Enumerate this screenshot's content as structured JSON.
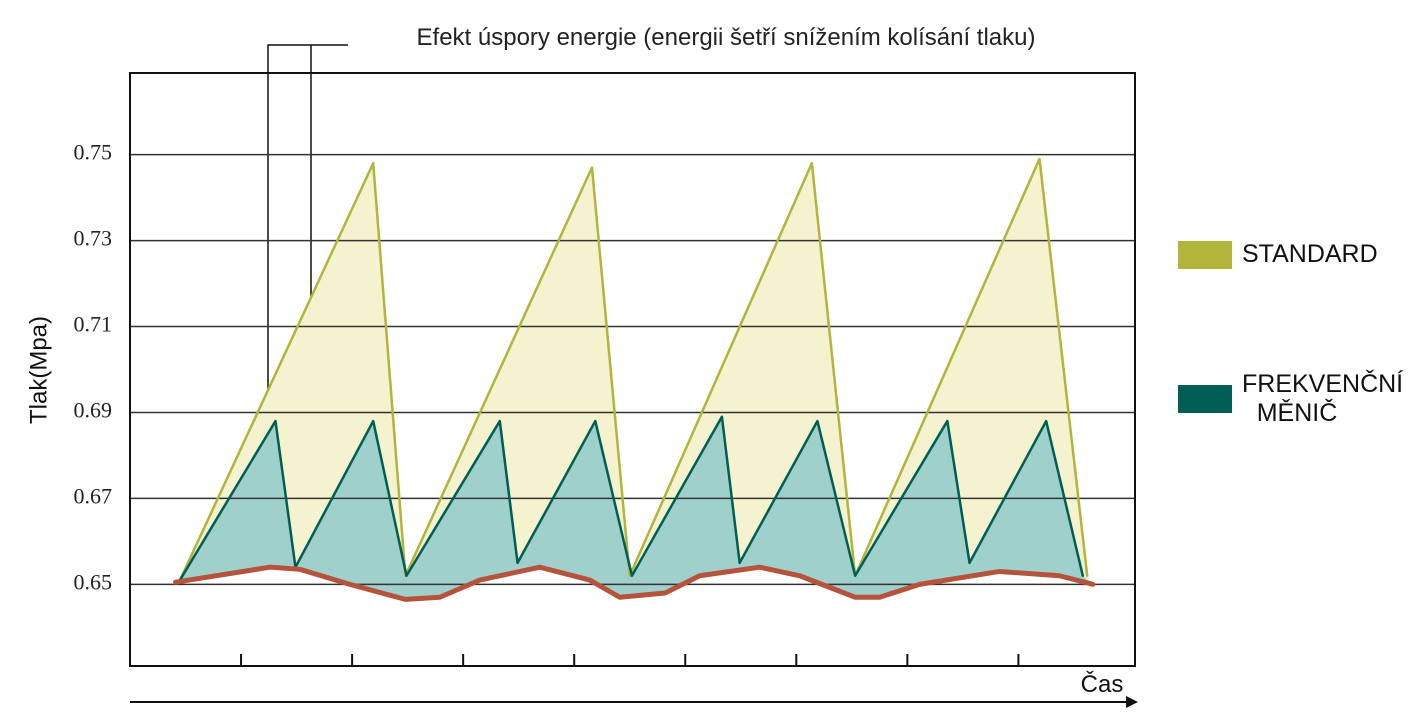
{
  "chart_data": {
    "type": "area",
    "annotation": "Efekt úspory energie (energii šetří snížením kolísání tlaku)",
    "y_label": "Tlak(Mpa)",
    "x_label": "Čas",
    "xlim": [
      0,
      9.05
    ],
    "xticks": [
      1,
      2,
      3,
      4,
      5,
      6,
      7,
      8
    ],
    "ylim": [
      0.631,
      0.769
    ],
    "yticks": [
      0.65,
      0.67,
      0.69,
      0.71,
      0.73,
      0.75
    ],
    "grid": true,
    "legend": "right",
    "series": [
      {
        "name": "STANDARD",
        "color": "#b2b43c",
        "fill": "#f4f2cf",
        "x": [
          0.45,
          2.19,
          2.48,
          4.16,
          4.5,
          6.14,
          6.53,
          8.19,
          8.62
        ],
        "values": [
          0.651,
          0.748,
          0.652,
          0.747,
          0.652,
          0.748,
          0.652,
          0.749,
          0.652
        ]
      },
      {
        "name": "FREKVENČNÍ MĚNIČ",
        "color": "#005e55",
        "fill": "#9fd0cb",
        "x": [
          0.45,
          1.31,
          1.49,
          2.19,
          2.49,
          3.33,
          3.49,
          4.19,
          4.52,
          5.33,
          5.49,
          6.19,
          6.53,
          7.36,
          7.56,
          8.25,
          8.58
        ],
        "values": [
          0.651,
          0.688,
          0.654,
          0.688,
          0.652,
          0.688,
          0.655,
          0.688,
          0.652,
          0.689,
          0.655,
          0.688,
          0.652,
          0.688,
          0.655,
          0.688,
          0.652
        ]
      },
      {
        "color": "#b5533c",
        "x": [
          0.41,
          1.26,
          1.53,
          1.98,
          2.48,
          2.79,
          3.15,
          3.69,
          4.14,
          4.41,
          4.82,
          5.13,
          5.67,
          6.03,
          6.53,
          6.75,
          7.11,
          7.83,
          8.37,
          8.67
        ],
        "values": [
          0.6505,
          0.654,
          0.6535,
          0.65,
          0.6465,
          0.647,
          0.651,
          0.654,
          0.651,
          0.647,
          0.648,
          0.652,
          0.654,
          0.652,
          0.647,
          0.647,
          0.65,
          0.653,
          0.652,
          0.65
        ]
      }
    ]
  }
}
